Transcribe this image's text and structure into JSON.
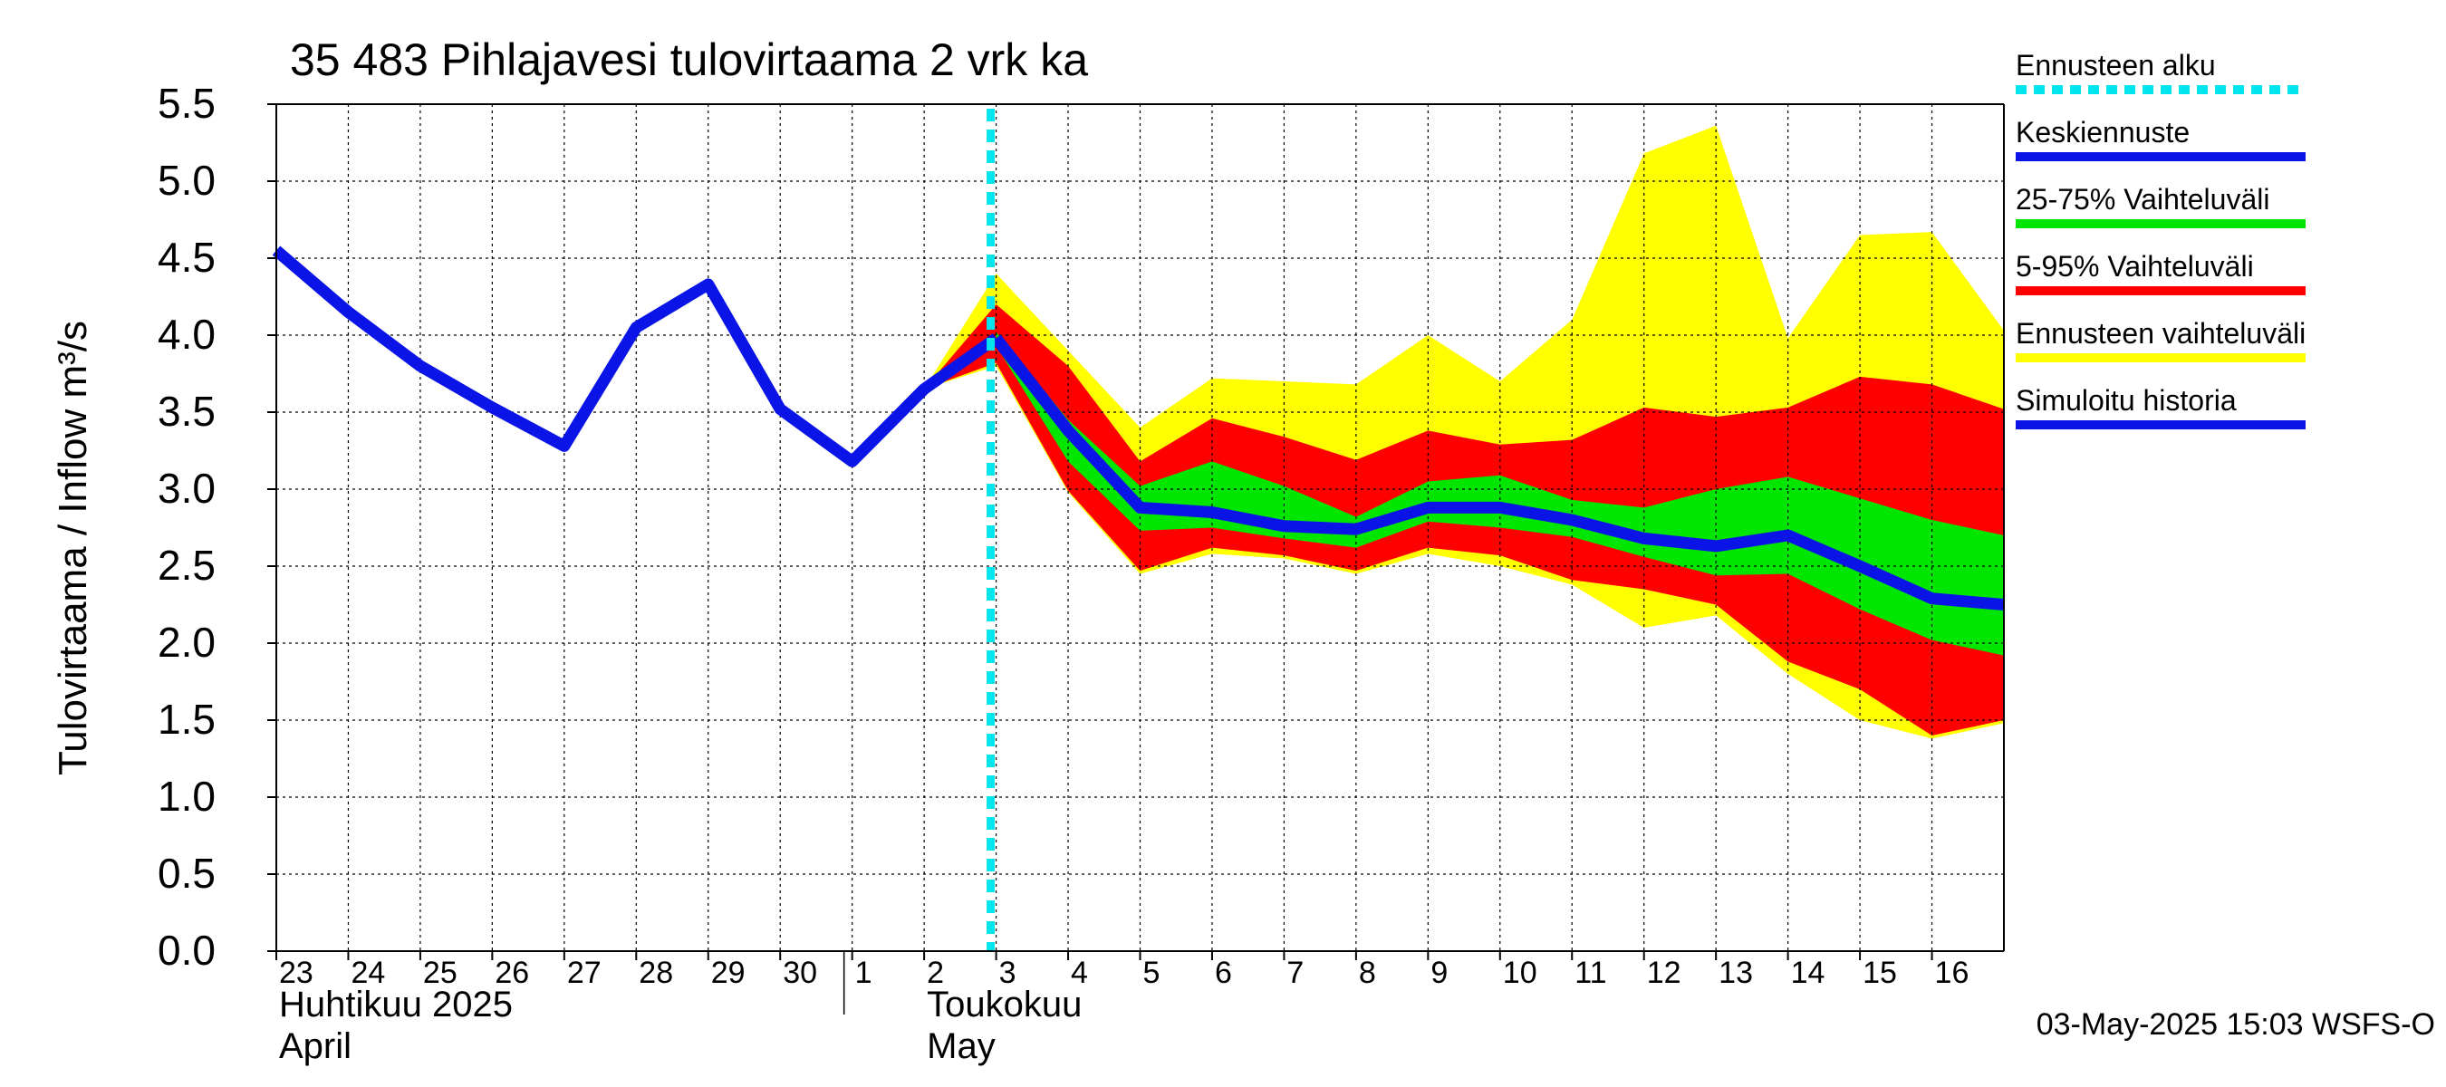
{
  "chart_data": {
    "type": "area",
    "title": "35 483 Pihlajavesi tulovirtaama 2 vrk ka",
    "ylabel": "Tulovirtaama / Inflow    m³/s",
    "xlabel": "",
    "ylim": [
      0,
      5.5
    ],
    "y_ticks": [
      "0.0",
      "0.5",
      "1.0",
      "1.5",
      "2.0",
      "2.5",
      "3.0",
      "3.5",
      "4.0",
      "4.5",
      "5.0",
      "5.5"
    ],
    "x_range": [
      "2025-04-23",
      "2025-05-17"
    ],
    "x_day_labels": [
      "23",
      "24",
      "25",
      "26",
      "27",
      "28",
      "29",
      "30",
      "1",
      "2",
      "3",
      "4",
      "5",
      "6",
      "7",
      "8",
      "9",
      "10",
      "11",
      "12",
      "13",
      "14",
      "15",
      "16"
    ],
    "x_day_dates": [
      "2025-04-23",
      "2025-04-24",
      "2025-04-25",
      "2025-04-26",
      "2025-04-27",
      "2025-04-28",
      "2025-04-29",
      "2025-04-30",
      "2025-05-01",
      "2025-05-02",
      "2025-05-03",
      "2025-05-04",
      "2025-05-05",
      "2025-05-06",
      "2025-05-07",
      "2025-05-08",
      "2025-05-09",
      "2025-05-10",
      "2025-05-11",
      "2025-05-12",
      "2025-05-13",
      "2025-05-14",
      "2025-05-15",
      "2025-05-16"
    ],
    "month_labels": [
      {
        "line1": "Huhtikuu  2025",
        "line2": "April",
        "date": "2025-04-23"
      },
      {
        "line1": "Toukokuu",
        "line2": "May",
        "date": "2025-05-02"
      }
    ],
    "month_separator_date": "2025-05-01",
    "forecast_start": "2025-05-03",
    "timestamp": "03-May-2025 15:03 WSFS-O",
    "grid": true,
    "legend_position": "right",
    "legend": [
      {
        "label": "Ennusteen alku",
        "color": "#00e5ee",
        "style": "dotted"
      },
      {
        "label": "Keskiennuste",
        "color": "#0a14e6",
        "style": "solid"
      },
      {
        "label": "25-75% Vaihteluväli",
        "color": "#00e600",
        "style": "solid"
      },
      {
        "label": "5-95% Vaihteluväli",
        "color": "#ff0000",
        "style": "solid"
      },
      {
        "label": "Ennusteen vaihteluväli",
        "color": "#ffff00",
        "style": "solid"
      },
      {
        "label": "Simuloitu historia",
        "color": "#0a14e6",
        "style": "solid"
      }
    ],
    "series": [
      {
        "name": "Simuloitu historia",
        "color": "#0a14e6",
        "x": [
          "2025-04-23",
          "2025-04-24",
          "2025-04-25",
          "2025-04-26",
          "2025-04-27",
          "2025-04-28",
          "2025-04-29",
          "2025-04-30",
          "2025-05-01",
          "2025-05-02",
          "2025-05-03"
        ],
        "values": [
          4.55,
          4.15,
          3.8,
          3.53,
          3.28,
          4.05,
          4.33,
          3.52,
          3.18,
          3.65,
          3.98
        ]
      },
      {
        "name": "Keskiennuste",
        "color": "#0a14e6",
        "x": [
          "2025-05-03",
          "2025-05-04",
          "2025-05-05",
          "2025-05-06",
          "2025-05-07",
          "2025-05-08",
          "2025-05-09",
          "2025-05-10",
          "2025-05-11",
          "2025-05-12",
          "2025-05-13",
          "2025-05-14",
          "2025-05-15",
          "2025-05-16",
          "2025-05-17"
        ],
        "values": [
          3.98,
          3.38,
          2.88,
          2.85,
          2.76,
          2.74,
          2.88,
          2.88,
          2.8,
          2.68,
          2.63,
          2.7,
          2.5,
          2.29,
          2.25
        ]
      }
    ],
    "bands": [
      {
        "name": "Ennusteen vaihteluväli",
        "color": "#ffff00",
        "x": [
          "2025-05-02",
          "2025-05-03",
          "2025-05-04",
          "2025-05-05",
          "2025-05-06",
          "2025-05-07",
          "2025-05-08",
          "2025-05-09",
          "2025-05-10",
          "2025-05-11",
          "2025-05-12",
          "2025-05-13",
          "2025-05-14",
          "2025-05-15",
          "2025-05-16",
          "2025-05-17"
        ],
        "upper": [
          3.65,
          4.4,
          3.9,
          3.4,
          3.72,
          3.7,
          3.68,
          4.0,
          3.7,
          4.1,
          5.18,
          5.36,
          3.98,
          4.65,
          4.67,
          4.03
        ],
        "lower": [
          3.65,
          3.8,
          2.98,
          2.45,
          2.58,
          2.55,
          2.45,
          2.58,
          2.5,
          2.38,
          2.1,
          2.18,
          1.8,
          1.5,
          1.38,
          1.48
        ]
      },
      {
        "name": "5-95% Vaihteluväli",
        "color": "#ff0000",
        "x": [
          "2025-05-02",
          "2025-05-03",
          "2025-05-04",
          "2025-05-05",
          "2025-05-06",
          "2025-05-07",
          "2025-05-08",
          "2025-05-09",
          "2025-05-10",
          "2025-05-11",
          "2025-05-12",
          "2025-05-13",
          "2025-05-14",
          "2025-05-15",
          "2025-05-16",
          "2025-05-17"
        ],
        "upper": [
          3.65,
          4.2,
          3.8,
          3.18,
          3.46,
          3.34,
          3.19,
          3.38,
          3.29,
          3.32,
          3.53,
          3.47,
          3.53,
          3.73,
          3.68,
          3.52
        ],
        "lower": [
          3.65,
          3.82,
          2.99,
          2.47,
          2.62,
          2.57,
          2.47,
          2.62,
          2.57,
          2.41,
          2.35,
          2.25,
          1.88,
          1.7,
          1.4,
          1.5
        ]
      },
      {
        "name": "25-75% Vaihteluväli",
        "color": "#00e600",
        "x": [
          "2025-05-03",
          "2025-05-04",
          "2025-05-05",
          "2025-05-06",
          "2025-05-07",
          "2025-05-08",
          "2025-05-09",
          "2025-05-10",
          "2025-05-11",
          "2025-05-12",
          "2025-05-13",
          "2025-05-14",
          "2025-05-15",
          "2025-05-16",
          "2025-05-17"
        ],
        "upper": [
          4.02,
          3.45,
          3.02,
          3.18,
          3.02,
          2.82,
          3.05,
          3.09,
          2.93,
          2.88,
          3.0,
          3.08,
          2.94,
          2.8,
          2.7
        ],
        "lower": [
          3.93,
          3.18,
          2.73,
          2.75,
          2.68,
          2.62,
          2.79,
          2.75,
          2.69,
          2.56,
          2.44,
          2.45,
          2.22,
          2.02,
          1.92
        ]
      }
    ]
  }
}
